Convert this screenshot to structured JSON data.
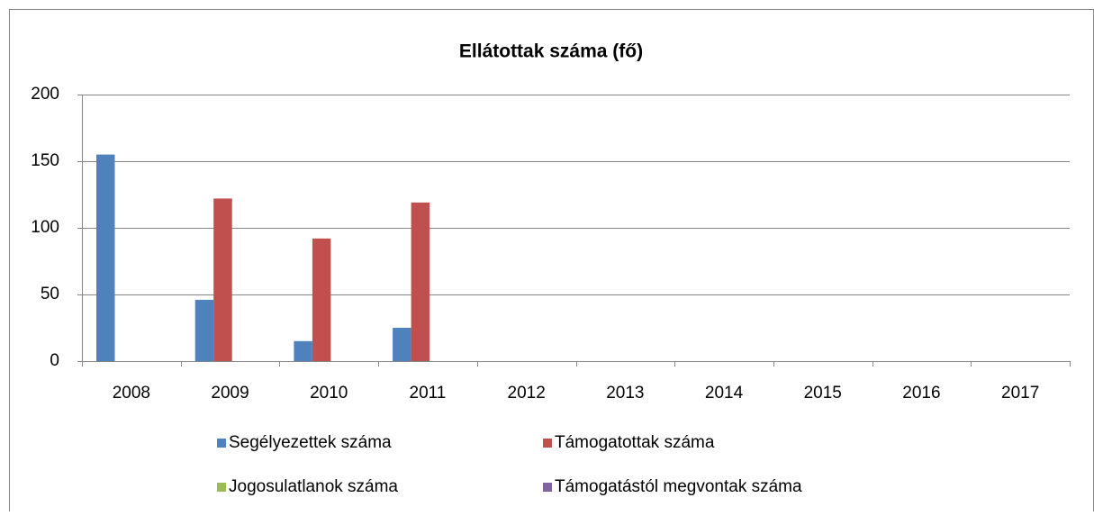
{
  "chart_data": {
    "type": "bar",
    "title": "Ellátottak száma (fő)",
    "categories": [
      "2008",
      "2009",
      "2010",
      "2011",
      "2012",
      "2013",
      "2014",
      "2015",
      "2016",
      "2017"
    ],
    "series": [
      {
        "name": "Segélyezettek száma",
        "color": "#4f81bd",
        "values": [
          155,
          46,
          15,
          25,
          null,
          null,
          null,
          null,
          null,
          null
        ]
      },
      {
        "name": "Támogatottak száma",
        "color": "#c0504d",
        "values": [
          null,
          122,
          92,
          119,
          null,
          null,
          null,
          null,
          null,
          null
        ]
      },
      {
        "name": "Jogosulatlanok száma",
        "color": "#9bbb59",
        "values": [
          null,
          null,
          null,
          null,
          null,
          null,
          null,
          null,
          null,
          null
        ]
      },
      {
        "name": "Támogatástól megvontak száma",
        "color": "#8064a2",
        "values": [
          null,
          null,
          null,
          null,
          null,
          null,
          null,
          null,
          null,
          null
        ]
      }
    ],
    "ylim": [
      0,
      200
    ],
    "yticks": [
      0,
      50,
      100,
      150,
      200
    ],
    "grid": true
  }
}
